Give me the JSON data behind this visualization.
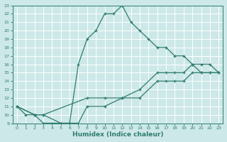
{
  "xlabel": "Humidex (Indice chaleur)",
  "bg_color": "#cde8e8",
  "grid_color": "#b0d0d0",
  "line_color": "#2e7d6e",
  "xlim": [
    -0.5,
    23.5
  ],
  "ylim": [
    9,
    23
  ],
  "xticks": [
    0,
    1,
    2,
    3,
    4,
    5,
    6,
    7,
    8,
    9,
    10,
    11,
    12,
    13,
    14,
    15,
    16,
    17,
    18,
    19,
    20,
    21,
    22,
    23
  ],
  "yticks": [
    9,
    10,
    11,
    12,
    13,
    14,
    15,
    16,
    17,
    18,
    19,
    20,
    21,
    22,
    23
  ],
  "curve_arch_x": [
    0,
    1,
    2,
    3,
    4,
    5,
    6,
    7,
    8,
    9,
    10,
    11,
    12,
    13,
    14,
    15,
    16,
    17,
    18,
    19,
    20,
    21,
    22,
    23
  ],
  "curve_arch_y": [
    11,
    10,
    10,
    9,
    9,
    9,
    9,
    16,
    19,
    20,
    22,
    22,
    23,
    21,
    20,
    19,
    18,
    18,
    17,
    17,
    16,
    15,
    15,
    15
  ],
  "curve_upper_x": [
    0,
    2,
    3,
    8,
    10,
    12,
    14,
    16,
    17,
    18,
    19,
    20,
    21,
    22,
    23
  ],
  "curve_upper_y": [
    11,
    10,
    10,
    12,
    12,
    12,
    13,
    15,
    15,
    15,
    15,
    16,
    16,
    16,
    15
  ],
  "curve_lower_x": [
    0,
    2,
    3,
    5,
    6,
    7,
    8,
    10,
    12,
    14,
    16,
    17,
    18,
    19,
    20,
    21,
    22,
    23
  ],
  "curve_lower_y": [
    11,
    10,
    10,
    9,
    9,
    9,
    11,
    11,
    12,
    12,
    14,
    14,
    14,
    14,
    15,
    15,
    15,
    15
  ]
}
